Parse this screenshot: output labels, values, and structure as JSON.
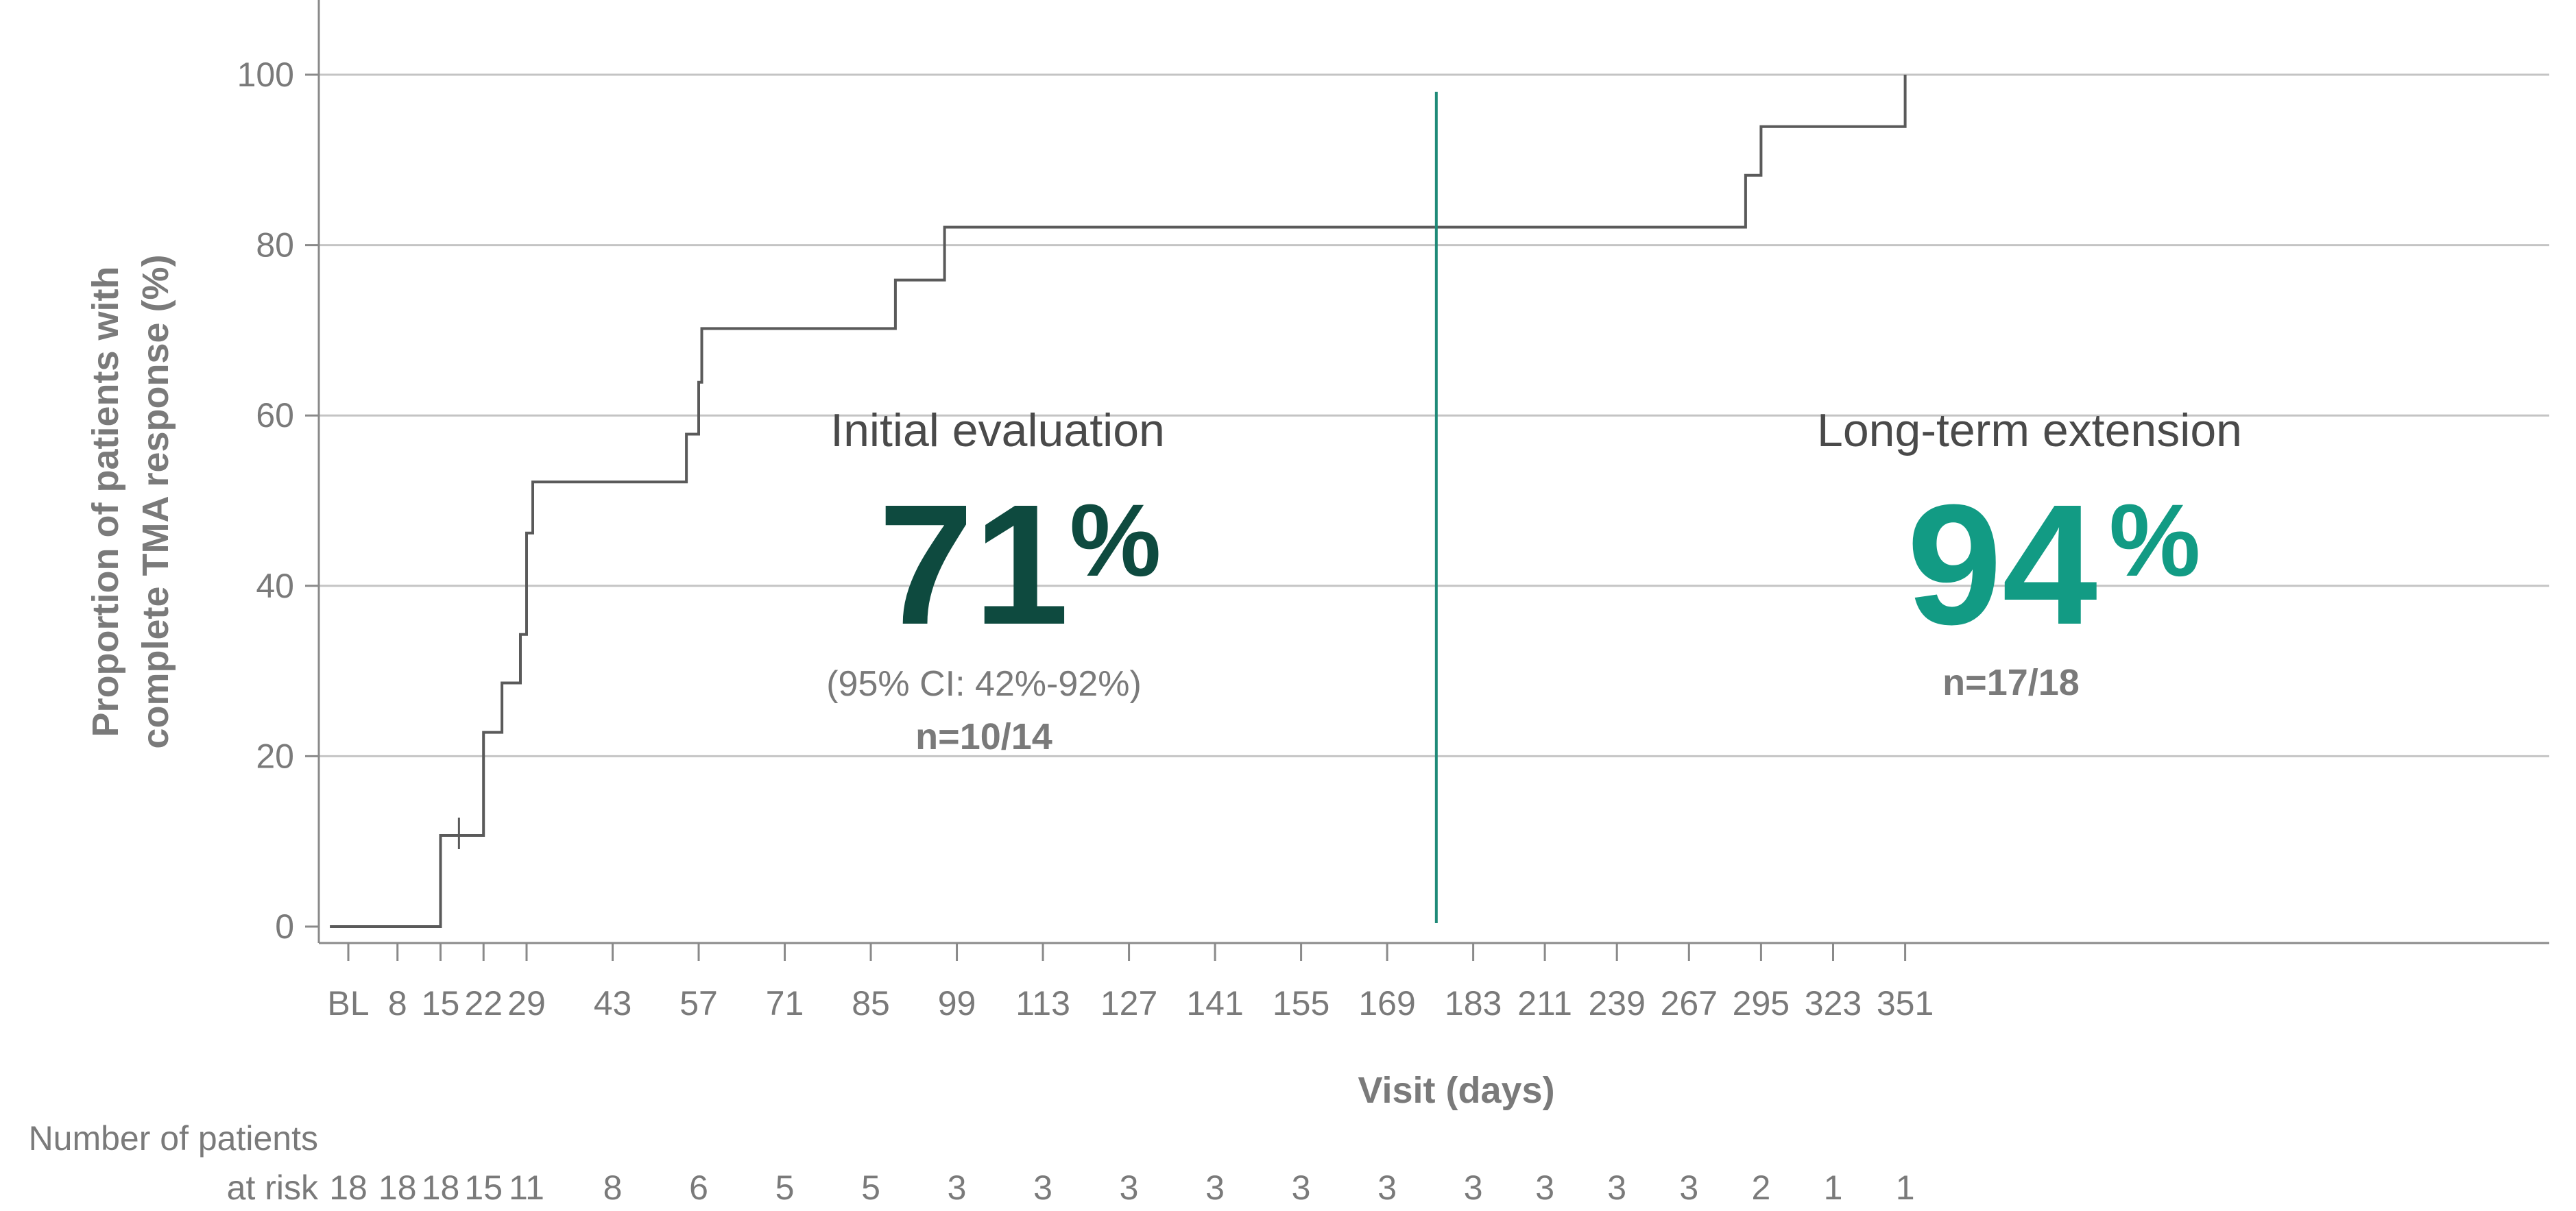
{
  "chart_data": {
    "type": "line",
    "step": true,
    "xlabel": "Visit (days)",
    "ylabel_lines": [
      "Proportion of patients with",
      "complete TMA response (%)"
    ],
    "ylim": [
      0,
      100
    ],
    "yticks": [
      0,
      20,
      40,
      60,
      80,
      100
    ],
    "grid": "horizontal",
    "x_ticks": [
      {
        "label": "BL",
        "day": 0
      },
      {
        "label": "8",
        "day": 8
      },
      {
        "label": "15",
        "day": 15
      },
      {
        "label": "22",
        "day": 22
      },
      {
        "label": "29",
        "day": 29
      },
      {
        "label": "43",
        "day": 43
      },
      {
        "label": "57",
        "day": 57
      },
      {
        "label": "71",
        "day": 71
      },
      {
        "label": "85",
        "day": 85
      },
      {
        "label": "99",
        "day": 99
      },
      {
        "label": "113",
        "day": 113
      },
      {
        "label": "127",
        "day": 127
      },
      {
        "label": "141",
        "day": 141
      },
      {
        "label": "155",
        "day": 155
      },
      {
        "label": "169",
        "day": 169
      },
      {
        "label": "183",
        "day": 183
      },
      {
        "label": "211",
        "day": 211
      },
      {
        "label": "239",
        "day": 239
      },
      {
        "label": "267",
        "day": 267
      },
      {
        "label": "295",
        "day": 295
      },
      {
        "label": "323",
        "day": 323
      },
      {
        "label": "351",
        "day": 351
      }
    ],
    "series": [
      {
        "color": "#5a5a5a",
        "points": [
          [
            -3,
            0
          ],
          [
            15,
            0
          ],
          [
            15,
            10.7
          ],
          [
            22,
            10.7
          ],
          [
            22,
            22.8
          ],
          [
            25,
            22.8
          ],
          [
            25,
            28.6
          ],
          [
            28,
            28.6
          ],
          [
            28,
            34.3
          ],
          [
            29,
            34.3
          ],
          [
            29,
            46.2
          ],
          [
            30,
            46.2
          ],
          [
            30,
            52.2
          ],
          [
            55,
            52.2
          ],
          [
            55,
            57.8
          ],
          [
            57,
            57.8
          ],
          [
            57,
            63.9
          ],
          [
            57.5,
            63.9
          ],
          [
            57.5,
            70.2
          ],
          [
            89,
            70.2
          ],
          [
            89,
            75.9
          ],
          [
            97,
            75.9
          ],
          [
            97,
            82.1
          ],
          [
            289,
            82.1
          ],
          [
            289,
            88.2
          ],
          [
            295,
            88.2
          ],
          [
            295,
            93.9
          ],
          [
            351,
            93.9
          ],
          [
            351,
            100
          ]
        ]
      }
    ],
    "censor_marks": [
      [
        18,
        10.7
      ]
    ],
    "divider": {
      "day": 177,
      "color": "#1f8a78",
      "y_top": 98
    },
    "annotations": [
      {
        "heading": "Initial evaluation",
        "value": "71",
        "unit": "%",
        "ci": "(95% CI: 42%-92%)",
        "n": "n=10/14",
        "color": "#0e4a3f"
      },
      {
        "heading": "Long-term extension",
        "value": "94",
        "unit": "%",
        "n": "n=17/18",
        "color": "#129b84"
      }
    ],
    "risk_table": {
      "label_line1": "Number of patients",
      "label_line2": "at risk",
      "values": [
        "18",
        "18",
        "18",
        "15",
        "11",
        "8",
        "6",
        "5",
        "5",
        "3",
        "3",
        "3",
        "3",
        "3",
        "3",
        "3",
        "3",
        "3",
        "3",
        "2",
        "1",
        "1"
      ]
    }
  }
}
